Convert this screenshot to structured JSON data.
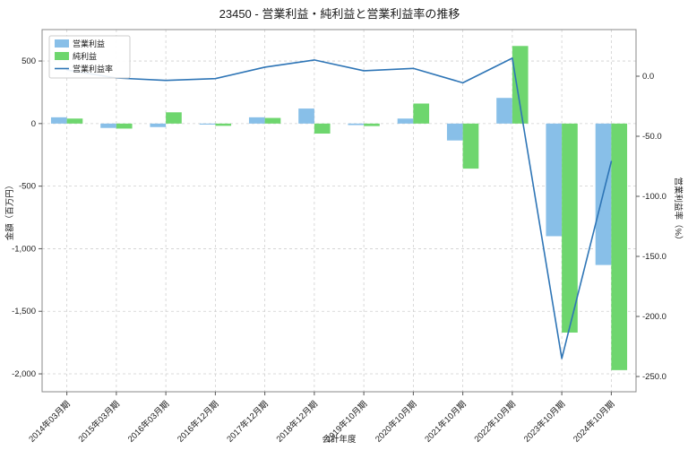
{
  "chart_data": {
    "type": "bar",
    "title": "23450 - 営業利益・純利益と営業利益率の推移",
    "xlabel": "会計年度",
    "categories": [
      "2014年03月期",
      "2015年03月期",
      "2016年03月期",
      "2016年12月期",
      "2017年12月期",
      "2018年12月期",
      "2019年10月期",
      "2020年10月期",
      "2021年10月期",
      "2022年10月期",
      "2023年10月期",
      "2024年10月期"
    ],
    "series": [
      {
        "name": "営業利益",
        "type": "bar",
        "axis": "left",
        "color": "#88bfe8",
        "values": [
          50,
          -35,
          -28,
          -8,
          50,
          120,
          -12,
          40,
          -135,
          205,
          -900,
          -1130
        ]
      },
      {
        "name": "純利益",
        "type": "bar",
        "axis": "left",
        "color": "#6ed66e",
        "values": [
          40,
          -40,
          90,
          -18,
          45,
          -80,
          -20,
          160,
          -360,
          620,
          -1670,
          -1970
        ]
      },
      {
        "name": "営業利益率",
        "type": "line",
        "axis": "right",
        "color": "#2e75b6",
        "values": [
          5.2,
          -1.5,
          -3.5,
          -2.0,
          7.5,
          13.5,
          4.5,
          6.5,
          -5.5,
          15.0,
          -235.0,
          -71.0
        ]
      }
    ],
    "left_axis": {
      "label": "金額（百万円）",
      "min": -2143,
      "max": 751,
      "tick_values": [
        500,
        0,
        -500,
        -1000,
        -1500,
        -2000
      ],
      "tick_labels": [
        "500",
        "0",
        "-500",
        "-1,000",
        "-1,500",
        "-2,000"
      ]
    },
    "right_axis": {
      "label": "営業利益率（%）",
      "min": -262.7,
      "max": 38.8,
      "tick_values": [
        0,
        -50,
        -100,
        -150,
        -200,
        -250
      ],
      "tick_labels": [
        "0.0",
        "-50.0",
        "-100.0",
        "-150.0",
        "-200.0",
        "-250.0"
      ]
    },
    "grid": true,
    "legend_position": "upper-left",
    "colors": {
      "grid": "#cfcfcf",
      "spine": "#8a8a8a",
      "text": "#1a1a1a"
    }
  }
}
